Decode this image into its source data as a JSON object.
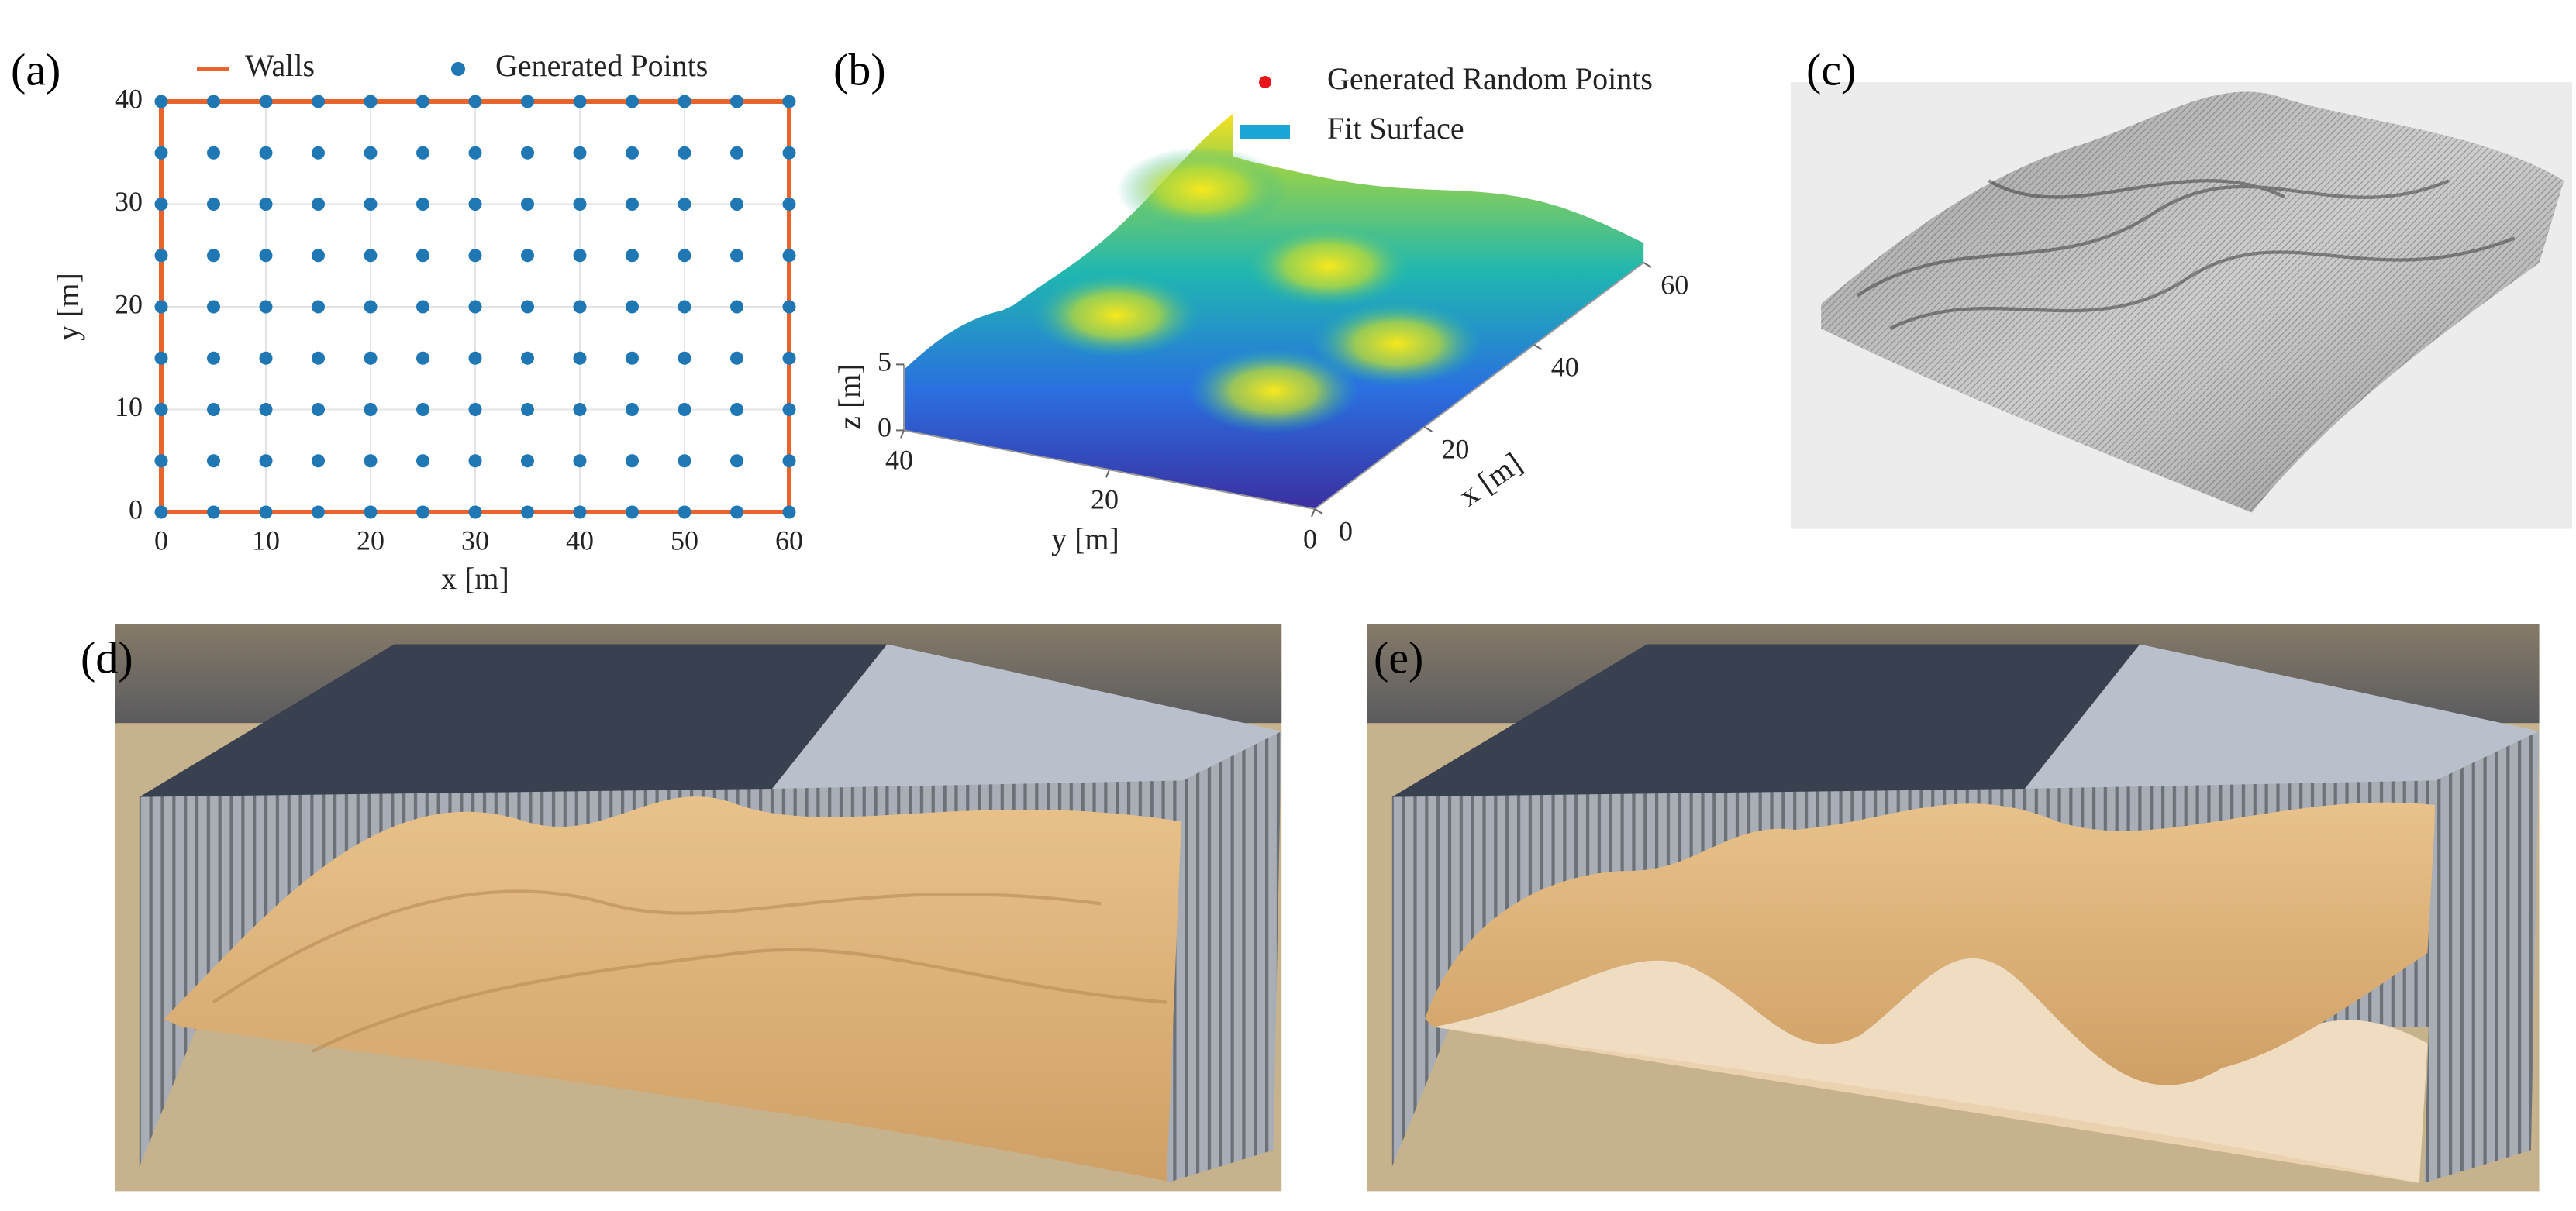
{
  "chart_data": [
    {
      "type": "scatter",
      "panel_label": "(a)",
      "xlabel": "x [m]",
      "ylabel": "y [m]",
      "xlim": [
        0,
        60
      ],
      "ylim": [
        0,
        40
      ],
      "xticks": [
        0,
        10,
        20,
        30,
        40,
        50,
        60
      ],
      "yticks": [
        0,
        10,
        20,
        30,
        40
      ],
      "grid": true,
      "series": [
        {
          "name": "Walls",
          "color": "#e8642c",
          "style": "line",
          "x": [
            0,
            60,
            60,
            0,
            0
          ],
          "y": [
            0,
            0,
            40,
            40,
            0
          ]
        },
        {
          "name": "Generated Points",
          "color": "#1f77b4",
          "style": "marker",
          "x": [
            0,
            5,
            10,
            15,
            20,
            25,
            30,
            35,
            40,
            45,
            50,
            55,
            60,
            0,
            5,
            10,
            15,
            20,
            25,
            30,
            35,
            40,
            45,
            50,
            55,
            60,
            0,
            5,
            10,
            15,
            20,
            25,
            30,
            35,
            40,
            45,
            50,
            55,
            60,
            0,
            5,
            10,
            15,
            20,
            25,
            30,
            35,
            40,
            45,
            50,
            55,
            60,
            0,
            5,
            10,
            15,
            20,
            25,
            30,
            35,
            40,
            45,
            50,
            55,
            60,
            0,
            5,
            10,
            15,
            20,
            25,
            30,
            35,
            40,
            45,
            50,
            55,
            60,
            0,
            5,
            10,
            15,
            20,
            25,
            30,
            35,
            40,
            45,
            50,
            55,
            60,
            0,
            5,
            10,
            15,
            20,
            25,
            30,
            35,
            40,
            45,
            50,
            55,
            60,
            0,
            5,
            10,
            15,
            20,
            25,
            30,
            35,
            40,
            45,
            50,
            55,
            60
          ],
          "y": [
            0,
            0,
            0,
            0,
            0,
            0,
            0,
            0,
            0,
            0,
            0,
            0,
            0,
            5,
            5,
            5,
            5,
            5,
            5,
            5,
            5,
            5,
            5,
            5,
            5,
            5,
            10,
            10,
            10,
            10,
            10,
            10,
            10,
            10,
            10,
            10,
            10,
            10,
            10,
            15,
            15,
            15,
            15,
            15,
            15,
            15,
            15,
            15,
            15,
            15,
            15,
            15,
            20,
            20,
            20,
            20,
            20,
            20,
            20,
            20,
            20,
            20,
            20,
            20,
            20,
            25,
            25,
            25,
            25,
            25,
            25,
            25,
            25,
            25,
            25,
            25,
            25,
            25,
            30,
            30,
            30,
            30,
            30,
            30,
            30,
            30,
            30,
            30,
            30,
            30,
            30,
            35,
            35,
            35,
            35,
            35,
            35,
            35,
            35,
            35,
            35,
            35,
            35,
            35,
            40,
            40,
            40,
            40,
            40,
            40,
            40,
            40,
            40,
            40,
            40,
            40,
            40
          ]
        }
      ]
    },
    {
      "type": "surface3d",
      "panel_label": "(b)",
      "xlabel": "x [m]",
      "ylabel": "y [m]",
      "zlabel": "z [m]",
      "xlim": [
        0,
        60
      ],
      "ylim": [
        0,
        40
      ],
      "zlim": [
        0,
        5
      ],
      "xticks": [
        0,
        20,
        40,
        60
      ],
      "yticks": [
        0,
        20,
        40
      ],
      "zticks": [
        0,
        5
      ],
      "legend": [
        {
          "name": "Generated Random Points",
          "color": "#e8141a"
        },
        {
          "name": "Fit Surface",
          "color": "#1aa7d8"
        }
      ]
    }
  ],
  "figures": [
    {
      "panel_label": "(c)"
    },
    {
      "panel_label": "(d)"
    },
    {
      "panel_label": "(e)"
    }
  ]
}
